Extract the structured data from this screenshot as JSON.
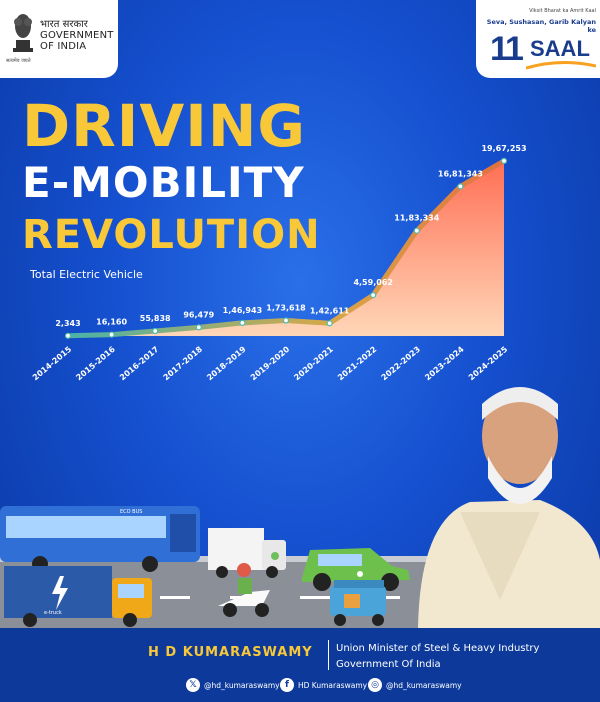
{
  "header": {
    "logo_hindi": "भारत सरकार",
    "logo_line1": "GOVERNMENT",
    "logo_line2": "OF INDIA",
    "emblem_caption": "सत्यमेव जयते",
    "saal_top": "Viksit Bharat ka Amrit Kaal",
    "saal_tagline": "Seva, Sushasan, Garib Kalyan ke",
    "saal_number": "11",
    "saal_word": "SAAL"
  },
  "headline": {
    "line1": "DRIVING",
    "line2": "E-MOBILITY",
    "line3": "REVOLUTION"
  },
  "chart_data": {
    "type": "area",
    "subtitle": "Total Electric Vehicle",
    "categories": [
      "2014-2015",
      "2015-2016",
      "2016-2017",
      "2017-2018",
      "2018-2019",
      "2019-2020",
      "2020-2021",
      "2021-2022",
      "2022-2023",
      "2023-2024",
      "2024-2025"
    ],
    "values": [
      2343,
      16160,
      55838,
      96479,
      146943,
      173618,
      142611,
      459062,
      1183334,
      1681343,
      1967253
    ],
    "labels": [
      "2,343",
      "16,160",
      "55,838",
      "96,479",
      "1,46,943",
      "1,73,618",
      "1,42,611",
      "4,59,062",
      "11,83,334",
      "16,81,343",
      "19,67,253"
    ],
    "grid": false,
    "legend": "none",
    "colors": {
      "area_top": "#ffd0b0",
      "area_bottom": "#ff7a5a",
      "line": "#f0c060",
      "point": "#7ee0d0"
    }
  },
  "footer": {
    "name": "H D KUMARASWAMY",
    "role_line1": "Union Minister of Steel & Heavy Industry",
    "role_line2": "Government Of India",
    "social": [
      {
        "icon": "x-icon",
        "glyph": "𝕏",
        "handle": "@hd_kumaraswamy"
      },
      {
        "icon": "facebook-icon",
        "glyph": "f",
        "handle": "HD Kumaraswamy"
      },
      {
        "icon": "instagram-icon",
        "glyph": "◎",
        "handle": "@hd_kumaraswamy"
      }
    ]
  },
  "scene": {
    "bus_label": "ECO BUS",
    "truck_label": "e-truck"
  }
}
